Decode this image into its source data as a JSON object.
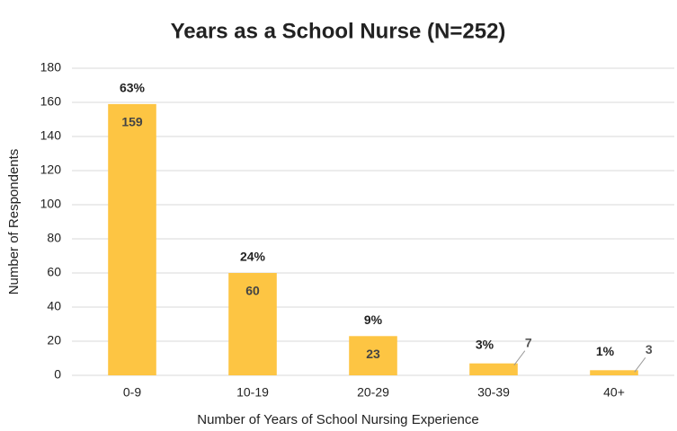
{
  "chart_data": {
    "type": "bar",
    "title": "Years as a School Nurse (N=252)",
    "x_label": "Number of Years of School Nursing Experience",
    "y_label": "Number of Respondents",
    "categories": [
      "0-9",
      "10-19",
      "20-29",
      "30-39",
      "40+"
    ],
    "values": [
      159,
      60,
      23,
      7,
      3
    ],
    "percent_labels": [
      "63%",
      "24%",
      "9%",
      "3%",
      "1%"
    ],
    "color": "#fdc543",
    "ylim": [
      0,
      180
    ],
    "yticks": [
      0,
      20,
      40,
      60,
      80,
      100,
      120,
      140,
      160,
      180
    ],
    "grid": true
  }
}
